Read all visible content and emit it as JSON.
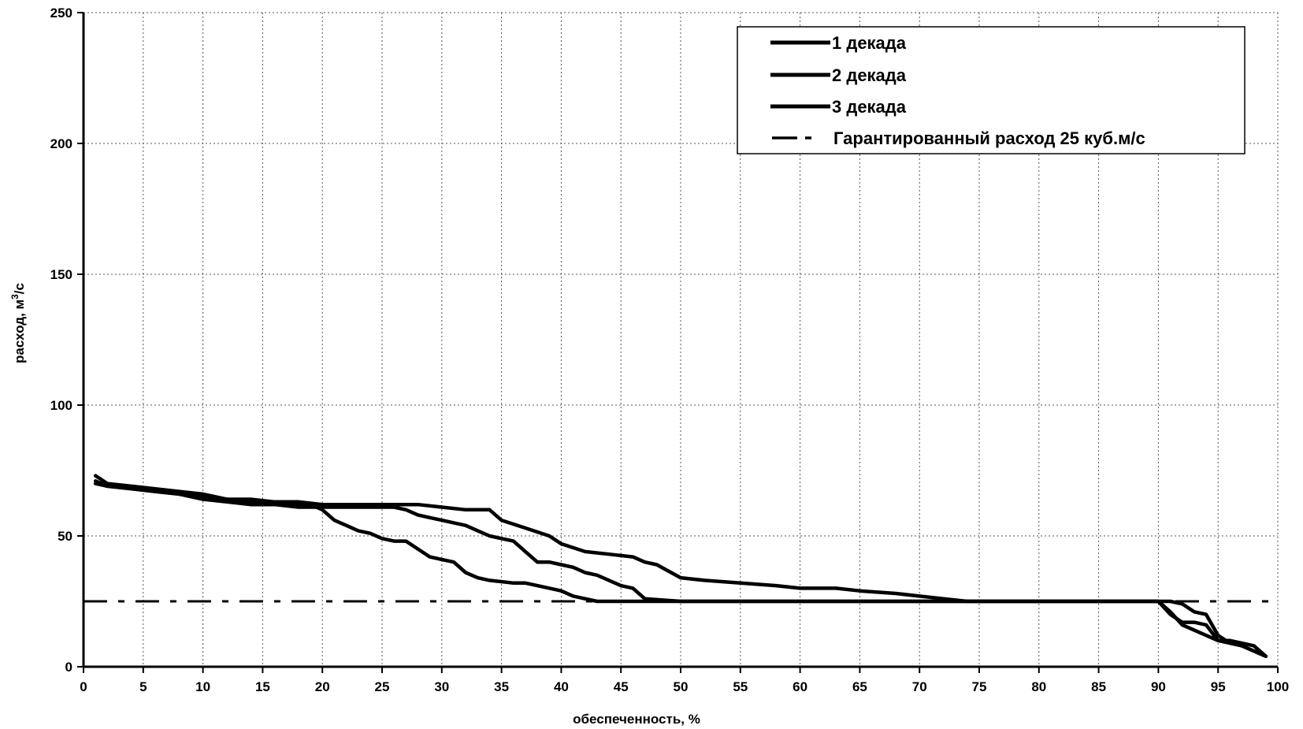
{
  "chart_data": {
    "type": "line",
    "title": "",
    "xlabel": "обеспеченность, %",
    "ylabel_main": "расход, м",
    "ylabel_sup": "3",
    "ylabel_tail": "/с",
    "xlim": [
      0,
      100
    ],
    "ylim": [
      0,
      250
    ],
    "xticks": [
      0,
      5,
      10,
      15,
      20,
      25,
      30,
      35,
      40,
      45,
      50,
      55,
      60,
      65,
      70,
      75,
      80,
      85,
      90,
      95,
      100
    ],
    "yticks": [
      0,
      50,
      100,
      150,
      200,
      250
    ],
    "grid": true,
    "legend_position": "top-right",
    "series": [
      {
        "name": "1 декада",
        "style": "solid",
        "x": [
          1,
          2,
          4,
          6,
          8,
          10,
          12,
          14,
          16,
          18,
          20,
          22,
          24,
          26,
          28,
          30,
          32,
          34,
          35,
          37,
          39,
          40,
          42,
          44,
          46,
          47,
          48,
          50,
          52,
          55,
          58,
          60,
          63,
          65,
          68,
          70,
          72,
          74,
          76,
          80,
          85,
          90,
          91,
          92,
          93,
          94,
          95,
          96,
          97,
          99
        ],
        "y": [
          70,
          69,
          68,
          67,
          66,
          65,
          64,
          64,
          63,
          63,
          62,
          62,
          62,
          62,
          62,
          61,
          60,
          60,
          56,
          53,
          50,
          47,
          44,
          43,
          42,
          40,
          39,
          34,
          33,
          32,
          31,
          30,
          30,
          29,
          28,
          27,
          26,
          25,
          25,
          25,
          25,
          25,
          25,
          24,
          21,
          20,
          12,
          9,
          8,
          4
        ]
      },
      {
        "name": "2 декада",
        "style": "solid",
        "x": [
          1,
          2,
          4,
          6,
          8,
          10,
          12,
          14,
          16,
          18,
          19,
          20,
          21,
          22,
          23,
          24,
          25,
          26,
          27,
          28,
          29,
          30,
          31,
          32,
          33,
          34,
          36,
          37,
          38,
          40,
          41,
          42,
          43,
          45,
          50,
          60,
          70,
          80,
          90,
          91,
          92,
          93,
          94,
          95,
          96,
          97,
          98,
          99
        ],
        "y": [
          73,
          70,
          69,
          68,
          67,
          66,
          64,
          63,
          62,
          62,
          62,
          60,
          56,
          54,
          52,
          51,
          49,
          48,
          48,
          45,
          42,
          41,
          40,
          36,
          34,
          33,
          32,
          32,
          31,
          29,
          27,
          26,
          25,
          25,
          25,
          25,
          25,
          25,
          25,
          20,
          17,
          17,
          16,
          10,
          10,
          9,
          8,
          4
        ]
      },
      {
        "name": "3 декада",
        "style": "solid",
        "x": [
          1,
          2,
          4,
          6,
          8,
          10,
          12,
          14,
          16,
          18,
          20,
          22,
          24,
          26,
          27,
          28,
          29,
          30,
          31,
          32,
          33,
          34,
          35,
          36,
          37,
          38,
          39,
          40,
          41,
          42,
          43,
          44,
          45,
          46,
          47,
          50,
          60,
          70,
          80,
          90,
          91,
          92,
          93,
          94,
          95,
          96,
          97,
          98,
          99
        ],
        "y": [
          71,
          69,
          68,
          67,
          66,
          64,
          63,
          62,
          62,
          61,
          61,
          61,
          61,
          61,
          60,
          58,
          57,
          56,
          55,
          54,
          52,
          50,
          49,
          48,
          44,
          40,
          40,
          39,
          38,
          36,
          35,
          33,
          31,
          30,
          26,
          25,
          25,
          25,
          25,
          25,
          21,
          16,
          14,
          12,
          10,
          9,
          8,
          6,
          4
        ]
      },
      {
        "name": "Гарантированный расход 25 куб.м/с",
        "style": "dash-dot",
        "x": [
          0,
          100
        ],
        "y": [
          25,
          25
        ]
      }
    ]
  }
}
